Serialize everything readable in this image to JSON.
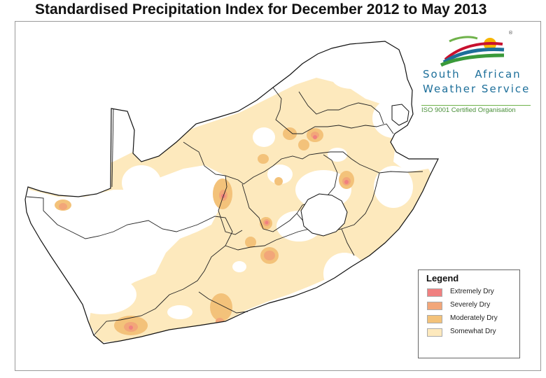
{
  "title": "Standardised Precipitation Index for December 2012 to May 2013",
  "logo": {
    "line1": "South African",
    "line2": "Weather Service",
    "tagline": "ISO 9001 Certified Organisation"
  },
  "legend": {
    "title": "Legend",
    "items": [
      {
        "label": "Extremely Dry",
        "color": "#f08080"
      },
      {
        "label": "Severely Dry",
        "color": "#f2a679"
      },
      {
        "label": "Moderately Dry",
        "color": "#f3c27a"
      },
      {
        "label": "Somewhat Dry",
        "color": "#fde9bd"
      }
    ]
  },
  "colors": {
    "land": "#ffffff",
    "border": "#111111",
    "frame": "#9a9a9a"
  }
}
